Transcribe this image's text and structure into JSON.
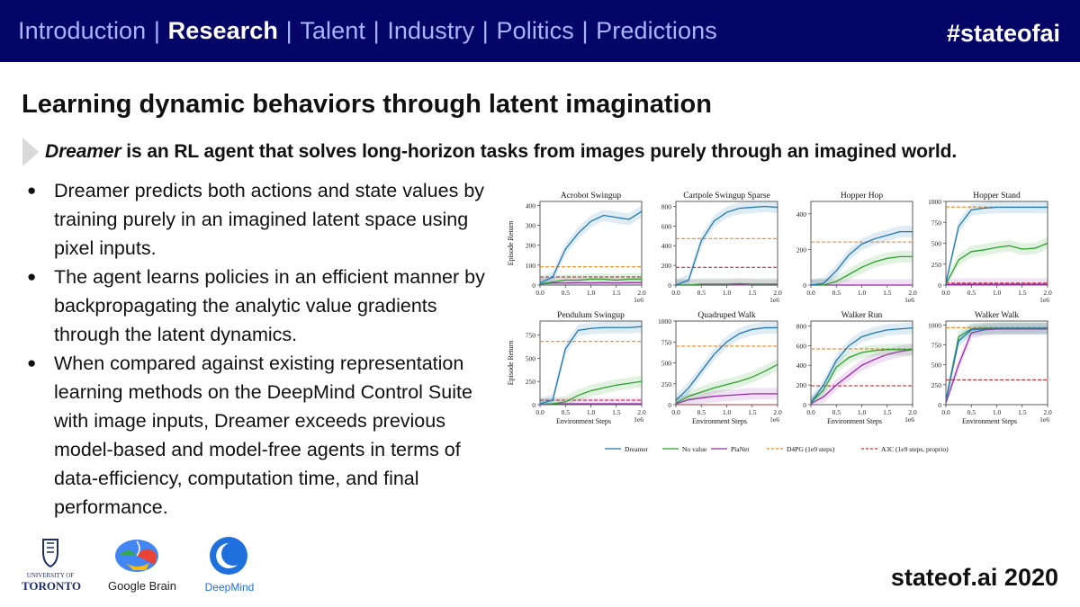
{
  "nav": {
    "items": [
      "Introduction",
      "Research",
      "Talent",
      "Industry",
      "Politics",
      "Predictions"
    ],
    "active": "Research",
    "hashtag": "#stateofai"
  },
  "slide": {
    "title": "Learning dynamic behaviors through latent imagination",
    "callout_em": "Dreamer",
    "callout_rest": " is an RL agent that solves long-horizon tasks from images purely through an imagined world.",
    "bullets": [
      "Dreamer predicts both actions and state values by training purely in an imagined latent space using pixel inputs.",
      "The agent learns policies in an efficient manner by backpropagating the analytic value gradients through the latent dynamics.",
      "When compared against existing representation learning methods on the DeepMind Control Suite with image inputs, Dreamer exceeds previous model-based and model-free agents in terms of data-efficiency, computation time, and final performance."
    ]
  },
  "logos": {
    "toronto_line1": "UNIVERSITY OF",
    "toronto_line2": "TORONTO",
    "google_brain": "Google Brain",
    "deepmind": "DeepMind"
  },
  "footer": {
    "text": "stateof.ai 2020"
  },
  "chart_data": {
    "type": "line",
    "xlabel": "Environment Steps",
    "ylabel": "Episode Return",
    "x_unit": "1e6",
    "x_ticks": [
      "0.0",
      "0.5",
      "1.0",
      "1.5",
      "2.0"
    ],
    "legend": [
      "Dreamer",
      "No value",
      "PlaNet",
      "D4PG (1e9 steps)",
      "A3C (1e9 steps, proprio)"
    ],
    "legend_position": "bottom",
    "colors": {
      "Dreamer": "#1f77b4",
      "No value": "#2ca02c",
      "PlaNet": "#9c27b0",
      "D4PG (1e9 steps)": "#ff7f0e",
      "A3C (1e9 steps, proprio)": "#d62728"
    },
    "x": [
      0,
      0.25,
      0.5,
      0.75,
      1.0,
      1.25,
      1.5,
      1.75,
      2.0
    ],
    "panels": [
      {
        "title": "Acrobot Swingup",
        "ylim": [
          0,
          420
        ],
        "yticks": [
          "0",
          "100",
          "200",
          "300",
          "400"
        ],
        "series": [
          {
            "name": "Dreamer",
            "values": [
              10,
              40,
              180,
              260,
              320,
              350,
              340,
              330,
              370
            ]
          },
          {
            "name": "No value",
            "values": [
              5,
              15,
              25,
              25,
              30,
              30,
              25,
              30,
              30
            ]
          },
          {
            "name": "PlaNet",
            "values": [
              5,
              10,
              10,
              12,
              10,
              12,
              10,
              12,
              12
            ]
          }
        ],
        "d4pg": 92,
        "a3c": 41
      },
      {
        "title": "Cartpole Swingup Sparse",
        "ylim": [
          0,
          850
        ],
        "yticks": [
          "0",
          "200",
          "400",
          "600",
          "800"
        ],
        "series": [
          {
            "name": "Dreamer",
            "values": [
              0,
              50,
              450,
              650,
              740,
              780,
              790,
              800,
              790
            ]
          },
          {
            "name": "No value",
            "values": [
              0,
              0,
              10,
              10,
              10,
              15,
              10,
              10,
              10
            ]
          },
          {
            "name": "PlaNet",
            "values": [
              0,
              0,
              0,
              0,
              0,
              5,
              0,
              0,
              0
            ]
          }
        ],
        "d4pg": 472,
        "a3c": 180
      },
      {
        "title": "Hopper Hop",
        "ylim": [
          0,
          470
        ],
        "yticks": [
          "0",
          "200",
          "400"
        ],
        "series": [
          {
            "name": "Dreamer",
            "values": [
              0,
              10,
              80,
              170,
              230,
              260,
              280,
              300,
              300
            ]
          },
          {
            "name": "No value",
            "values": [
              0,
              0,
              20,
              60,
              100,
              130,
              150,
              160,
              160
            ]
          },
          {
            "name": "PlaNet",
            "values": [
              0,
              0,
              0,
              0,
              0,
              0,
              0,
              0,
              0
            ]
          }
        ],
        "d4pg": 242,
        "a3c": 0
      },
      {
        "title": "Hopper Stand",
        "ylim": [
          0,
          1000
        ],
        "yticks": [
          "0",
          "250",
          "500",
          "750",
          "1000"
        ],
        "series": [
          {
            "name": "Dreamer",
            "values": [
              20,
              700,
              900,
              920,
              930,
              930,
              930,
              930,
              930
            ]
          },
          {
            "name": "No value",
            "values": [
              10,
              300,
              400,
              420,
              450,
              470,
              430,
              440,
              500
            ]
          },
          {
            "name": "PlaNet",
            "values": [
              5,
              10,
              10,
              10,
              10,
              10,
              10,
              10,
              10
            ]
          }
        ],
        "d4pg": 933,
        "a3c": 24
      },
      {
        "title": "Pendulum Swingup",
        "ylim": [
          0,
          900
        ],
        "yticks": [
          "0",
          "250",
          "500",
          "750"
        ],
        "series": [
          {
            "name": "Dreamer",
            "values": [
              10,
              50,
              600,
              800,
              820,
              830,
              830,
              830,
              840
            ]
          },
          {
            "name": "No value",
            "values": [
              5,
              10,
              30,
              100,
              150,
              180,
              210,
              230,
              250
            ]
          },
          {
            "name": "PlaNet",
            "values": [
              0,
              10,
              10,
              10,
              10,
              10,
              10,
              10,
              10
            ]
          }
        ],
        "d4pg": 680,
        "a3c": 48
      },
      {
        "title": "Quadruped Walk",
        "ylim": [
          0,
          1000
        ],
        "yticks": [
          "0",
          "250",
          "500",
          "750",
          "1000"
        ],
        "series": [
          {
            "name": "Dreamer",
            "values": [
              50,
              200,
              400,
              600,
              750,
              850,
              900,
              920,
              920
            ]
          },
          {
            "name": "No value",
            "values": [
              20,
              100,
              150,
              200,
              240,
              280,
              330,
              400,
              480
            ]
          },
          {
            "name": "PlaNet",
            "values": [
              10,
              60,
              80,
              100,
              110,
              120,
              130,
              130,
              130
            ]
          }
        ],
        "d4pg": 700,
        "a3c": 0
      },
      {
        "title": "Walker Run",
        "ylim": [
          0,
          850
        ],
        "yticks": [
          "0",
          "200",
          "400",
          "600",
          "800"
        ],
        "series": [
          {
            "name": "Dreamer",
            "values": [
              20,
              200,
              450,
              600,
              690,
              730,
              760,
              770,
              780
            ]
          },
          {
            "name": "No value",
            "values": [
              20,
              150,
              380,
              480,
              530,
              550,
              560,
              560,
              560
            ]
          },
          {
            "name": "PlaNet",
            "values": [
              10,
              80,
              200,
              300,
              400,
              460,
              510,
              540,
              560
            ]
          }
        ],
        "d4pg": 567,
        "a3c": 191
      },
      {
        "title": "Walker Walk",
        "ylim": [
          0,
          1050
        ],
        "yticks": [
          "0",
          "250",
          "500",
          "750",
          "1000"
        ],
        "series": [
          {
            "name": "Dreamer",
            "values": [
              50,
              800,
              940,
              950,
              960,
              960,
              960,
              960,
              960
            ]
          },
          {
            "name": "No value",
            "values": [
              50,
              850,
              950,
              960,
              960,
              960,
              960,
              960,
              960
            ]
          },
          {
            "name": "PlaNet",
            "values": [
              20,
              500,
              900,
              940,
              950,
              950,
              950,
              950,
              950
            ]
          }
        ],
        "d4pg": 968,
        "a3c": 311
      }
    ]
  }
}
